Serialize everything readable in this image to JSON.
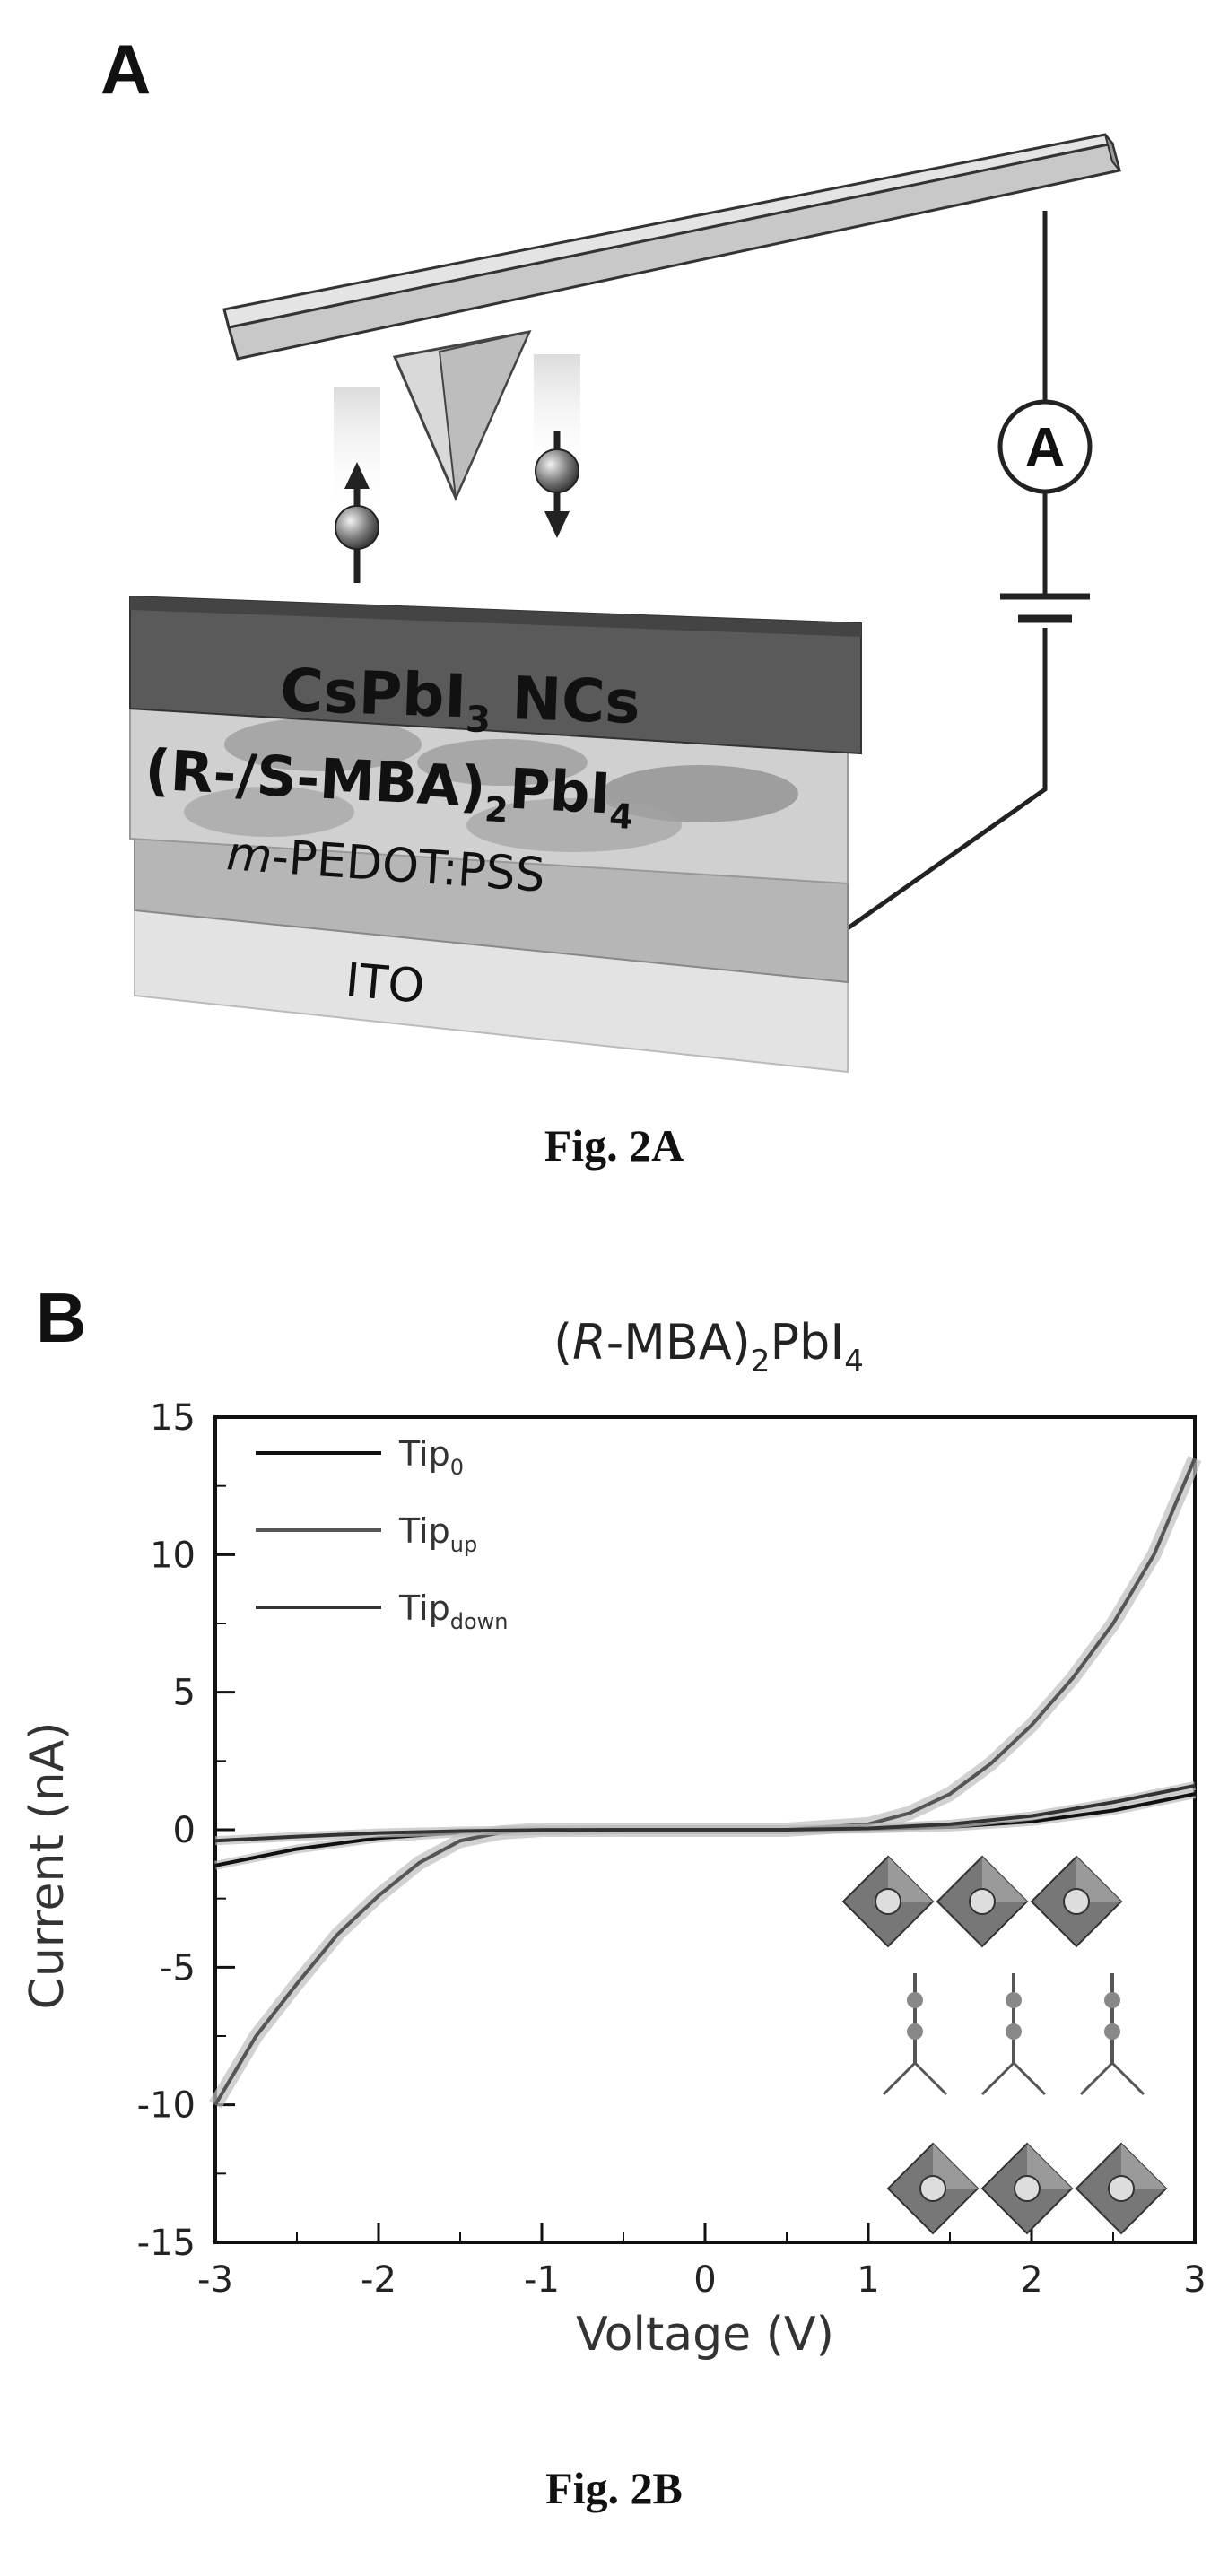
{
  "figure_a": {
    "panel_label": "A",
    "ammeter_label": "A",
    "layers": {
      "top_main": "CsPbI",
      "top_sub": "3",
      "top_tail": " NCs",
      "chiral_pre": "(R-/S-MBA)",
      "chiral_sub1": "2",
      "chiral_mid": "PbI",
      "chiral_sub2": "4",
      "pedot_italic": "m",
      "pedot_rest": "-PEDOT:PSS",
      "ito": "ITO"
    },
    "caption": "Fig. 2A"
  },
  "figure_b": {
    "panel_label": "B",
    "caption": "Fig. 2B"
  },
  "chart_data": {
    "type": "line",
    "title_parts": {
      "open": "(",
      "italic": "R",
      "mid": "-MBA)",
      "sub1": "2",
      "pbi": "PbI",
      "sub2": "4"
    },
    "xlabel": "Voltage (V)",
    "ylabel": "Current (nA)",
    "xlim": [
      -3,
      3
    ],
    "ylim": [
      -15,
      15
    ],
    "xticks": [
      -3,
      -2,
      -1,
      0,
      1,
      2,
      3
    ],
    "yticks": [
      15,
      10,
      5,
      0,
      -5,
      -10,
      -15
    ],
    "legend": [
      {
        "base": "Tip",
        "sub": "0"
      },
      {
        "base": "Tip",
        "sub": "up"
      },
      {
        "base": "Tip",
        "sub": "down"
      }
    ],
    "series": [
      {
        "name": "Tip0",
        "color": "#111111",
        "x": [
          -3.0,
          -2.5,
          -2.0,
          -1.5,
          -1.0,
          -0.5,
          0.0,
          0.5,
          1.0,
          1.5,
          2.0,
          2.5,
          3.0
        ],
        "y": [
          -1.3,
          -0.7,
          -0.3,
          -0.1,
          -0.03,
          0.0,
          0.0,
          0.0,
          0.03,
          0.1,
          0.3,
          0.7,
          1.3
        ]
      },
      {
        "name": "Tipup",
        "color": "#555555",
        "x": [
          -3.0,
          -2.75,
          -2.5,
          -2.25,
          -2.0,
          -1.75,
          -1.5,
          -1.25,
          -1.0,
          -0.5,
          0.0,
          0.5,
          1.0,
          1.25,
          1.5,
          1.75,
          2.0,
          2.25,
          2.5,
          2.75,
          3.0
        ],
        "y": [
          -10.0,
          -7.5,
          -5.6,
          -3.8,
          -2.4,
          -1.2,
          -0.4,
          -0.1,
          0.0,
          0.0,
          0.0,
          0.0,
          0.2,
          0.6,
          1.3,
          2.4,
          3.8,
          5.5,
          7.5,
          10.0,
          13.5
        ]
      },
      {
        "name": "Tipdown",
        "color": "#333333",
        "x": [
          -3.0,
          -2.5,
          -2.0,
          -1.5,
          -1.0,
          -0.5,
          0.0,
          0.5,
          1.0,
          1.5,
          2.0,
          2.5,
          3.0
        ],
        "y": [
          -0.4,
          -0.25,
          -0.12,
          -0.05,
          -0.01,
          0.0,
          0.0,
          0.0,
          0.05,
          0.2,
          0.5,
          1.0,
          1.6
        ]
      }
    ]
  }
}
